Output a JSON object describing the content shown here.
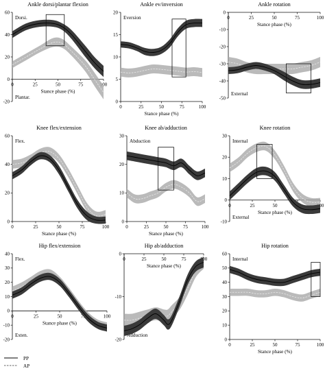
{
  "legend": {
    "items": [
      {
        "label": "PP",
        "style": "solid"
      },
      {
        "label": "AP",
        "style": "dashed"
      }
    ]
  },
  "colors": {
    "pp_band": "#3a3a3a",
    "ap_band": "#a9a9a9",
    "pp_mean": "#000000",
    "ap_mean": "#e8e8e8"
  },
  "chart_data": [
    {
      "id": "ankle-df",
      "type": "line",
      "title": "Ankle dorsi/plantar flexion",
      "xlabel": "Stance phase (%)",
      "ylabel": "",
      "top_label": "Dorsi.",
      "bottom_label": "Plantar.",
      "x_axis_at_y": 0,
      "xlim": [
        0,
        100
      ],
      "ylim": [
        -20,
        60
      ],
      "xticks": [
        0,
        25,
        50,
        75,
        100
      ],
      "yticks": [
        -20,
        0,
        20,
        40,
        60
      ],
      "significance": [
        {
          "x": [
            37,
            57
          ],
          "y": [
            30,
            58
          ],
          "star": "*"
        }
      ],
      "series": [
        {
          "name": "PP",
          "x": [
            0,
            15,
            30,
            45,
            55,
            65,
            80,
            90,
            100
          ],
          "mean": [
            40,
            47,
            50,
            50,
            47,
            40,
            25,
            15,
            7
          ],
          "sd": [
            3,
            3,
            3,
            3,
            3,
            4,
            5,
            5,
            5
          ]
        },
        {
          "name": "AP",
          "x": [
            0,
            15,
            30,
            45,
            55,
            65,
            80,
            90,
            100
          ],
          "mean": [
            13,
            20,
            27,
            33,
            32,
            25,
            12,
            0,
            -12
          ],
          "sd": [
            3,
            3,
            3,
            4,
            4,
            4,
            5,
            6,
            6
          ]
        }
      ]
    },
    {
      "id": "ankle-ev",
      "type": "line",
      "title": "Ankle ev/inversion",
      "xlabel": "Stance phase (%)",
      "ylabel": "",
      "top_label": "Eversion",
      "bottom_label": "",
      "x_axis_at_y": 0,
      "xlim": [
        0,
        100
      ],
      "ylim": [
        0,
        20
      ],
      "xticks": [
        0,
        25,
        50,
        75,
        100
      ],
      "yticks": [
        0,
        5,
        10,
        15,
        20
      ],
      "significance": [
        {
          "x": [
            63,
            80
          ],
          "y": [
            5.5,
            18.5
          ],
          "star": "*"
        }
      ],
      "series": [
        {
          "name": "PP",
          "x": [
            0,
            10,
            20,
            30,
            40,
            50,
            60,
            70,
            80,
            90,
            100
          ],
          "mean": [
            12.8,
            12.6,
            12.0,
            11.2,
            11.0,
            11.5,
            13.0,
            15.5,
            17.2,
            17.6,
            17.6
          ],
          "sd": [
            0.7,
            0.7,
            0.7,
            0.8,
            0.8,
            0.8,
            0.9,
            0.9,
            0.9,
            0.9,
            0.9
          ]
        },
        {
          "name": "AP",
          "x": [
            0,
            10,
            20,
            30,
            40,
            50,
            60,
            70,
            80,
            90,
            100
          ],
          "mean": [
            6.6,
            6.4,
            6.6,
            7.0,
            7.3,
            7.2,
            7.0,
            6.8,
            6.6,
            6.7,
            6.5
          ],
          "sd": [
            1.0,
            1.0,
            1.0,
            1.0,
            1.0,
            1.0,
            1.0,
            1.0,
            1.0,
            1.0,
            1.0
          ]
        }
      ]
    },
    {
      "id": "ankle-rot",
      "type": "line",
      "title": "Ankle rotation",
      "xlabel": "Stance phase (%)",
      "ylabel": "",
      "top_label": "",
      "bottom_label": "External",
      "x_axis_at_y": 0,
      "xlim": [
        0,
        100
      ],
      "ylim": [
        -50,
        0
      ],
      "xticks": [
        0,
        25,
        50,
        75,
        100
      ],
      "yticks": [
        -50,
        -40,
        -30,
        -20,
        -10,
        0
      ],
      "significance": [
        {
          "x": [
            63,
            90
          ],
          "y": [
            -47,
            -30
          ],
          "star": "*"
        }
      ],
      "series": [
        {
          "name": "PP",
          "x": [
            0,
            10,
            20,
            30,
            40,
            50,
            60,
            70,
            80,
            90,
            100
          ],
          "mean": [
            -34,
            -33.5,
            -32,
            -31,
            -32,
            -34,
            -37,
            -40,
            -42,
            -42,
            -41
          ],
          "sd": [
            2,
            2,
            2,
            2,
            2,
            2,
            2.5,
            2.5,
            2.5,
            2.5,
            2.5
          ]
        },
        {
          "name": "AP",
          "x": [
            0,
            10,
            20,
            30,
            40,
            50,
            60,
            70,
            80,
            90,
            100
          ],
          "mean": [
            -29,
            -30,
            -32,
            -33,
            -33,
            -33,
            -33,
            -33,
            -32,
            -31,
            -29
          ],
          "sd": [
            3,
            3,
            3,
            3,
            3,
            3,
            3,
            3,
            3,
            3,
            3
          ]
        }
      ]
    },
    {
      "id": "knee-flex",
      "type": "line",
      "title": "Knee flex/extension",
      "xlabel": "Stance phase (%)",
      "ylabel": "",
      "top_label": "Flex.",
      "bottom_label": "",
      "x_axis_at_y": 0,
      "xlim": [
        0,
        100
      ],
      "ylim": [
        0,
        60
      ],
      "xticks": [
        0,
        25,
        50,
        75,
        100
      ],
      "yticks": [
        0,
        20,
        40,
        60
      ],
      "significance": [],
      "series": [
        {
          "name": "PP",
          "x": [
            0,
            10,
            20,
            30,
            40,
            50,
            60,
            70,
            80,
            90,
            100
          ],
          "mean": [
            32,
            36,
            42,
            46,
            44,
            36,
            24,
            12,
            4,
            1,
            1
          ],
          "sd": [
            2.5,
            2.5,
            2.5,
            2.5,
            2.5,
            3,
            3,
            3,
            3,
            2.5,
            2.5
          ]
        },
        {
          "name": "AP",
          "x": [
            0,
            10,
            20,
            30,
            40,
            50,
            60,
            70,
            80,
            90,
            100
          ],
          "mean": [
            40,
            41,
            44,
            48,
            49,
            44,
            34,
            22,
            10,
            4,
            5
          ],
          "sd": [
            3,
            3,
            3,
            3,
            3,
            3,
            3,
            3,
            3,
            3,
            3
          ]
        }
      ]
    },
    {
      "id": "knee-ab",
      "type": "line",
      "title": "Knee ab/adduction",
      "xlabel": "Stance phase (%)",
      "ylabel": "",
      "top_label": "Abduction",
      "bottom_label": "",
      "x_axis_at_y": 0,
      "xlim": [
        0,
        100
      ],
      "ylim": [
        0,
        30
      ],
      "xticks": [
        0,
        25,
        50,
        75,
        100
      ],
      "yticks": [
        0,
        10,
        20,
        30
      ],
      "significance": [
        {
          "x": [
            40,
            60
          ],
          "y": [
            11,
            26
          ],
          "star": "*"
        }
      ],
      "series": [
        {
          "name": "PP",
          "x": [
            0,
            10,
            20,
            30,
            40,
            50,
            60,
            70,
            80,
            90,
            100
          ],
          "mean": [
            23,
            22.5,
            22,
            21.5,
            21,
            20.5,
            19.5,
            20.5,
            18,
            16,
            17
          ],
          "sd": [
            1.5,
            1.5,
            1.5,
            1.5,
            1.5,
            1.5,
            1.5,
            1.5,
            1.5,
            1.5,
            1.5
          ]
        },
        {
          "name": "AP",
          "x": [
            0,
            10,
            20,
            30,
            40,
            50,
            60,
            70,
            80,
            90,
            100
          ],
          "mean": [
            10,
            8,
            8,
            9,
            10,
            12,
            13,
            12,
            10,
            7,
            8
          ],
          "sd": [
            1.5,
            1.5,
            1.5,
            1.5,
            1.5,
            1.5,
            1.5,
            1.5,
            1.5,
            1.5,
            1.5
          ]
        }
      ]
    },
    {
      "id": "knee-rot",
      "type": "line",
      "title": "Knee rotation",
      "xlabel": "Stance phase (%)",
      "ylabel": "",
      "top_label": "Internal",
      "bottom_label": "External",
      "x_axis_at_y": 0,
      "xlim": [
        0,
        100
      ],
      "ylim": [
        -10,
        30
      ],
      "xticks": [
        0,
        25,
        50,
        75,
        100
      ],
      "yticks": [
        -10,
        0,
        10,
        20,
        30
      ],
      "significance": [
        {
          "x": [
            30,
            47
          ],
          "y": [
            10,
            26
          ],
          "star": "*"
        }
      ],
      "series": [
        {
          "name": "PP",
          "x": [
            0,
            10,
            20,
            30,
            40,
            50,
            60,
            70,
            80,
            90,
            100
          ],
          "mean": [
            2,
            6,
            10,
            13,
            13.5,
            11,
            5,
            -1,
            -4,
            -4.5,
            -4
          ],
          "sd": [
            2,
            2,
            2,
            2,
            2,
            2,
            2,
            2,
            2,
            2,
            2
          ]
        },
        {
          "name": "AP",
          "x": [
            0,
            10,
            20,
            30,
            40,
            50,
            60,
            70,
            80,
            90,
            100
          ],
          "mean": [
            15,
            18,
            22,
            24.5,
            25,
            21,
            14,
            6,
            1,
            -1,
            -1
          ],
          "sd": [
            2,
            2,
            2,
            2,
            2,
            2,
            2,
            2,
            2,
            2,
            2
          ]
        }
      ]
    },
    {
      "id": "hip-flex",
      "type": "line",
      "title": "Hip flex/extension",
      "xlabel": "Stance phase (%)",
      "ylabel": "",
      "top_label": "Flex.",
      "bottom_label": "Exten.",
      "x_axis_at_y": 0,
      "xlim": [
        0,
        100
      ],
      "ylim": [
        -20,
        40
      ],
      "xticks": [
        0,
        25,
        50,
        75,
        100
      ],
      "yticks": [
        -20,
        -10,
        0,
        10,
        20,
        30,
        40
      ],
      "significance": [],
      "series": [
        {
          "name": "PP",
          "x": [
            0,
            10,
            20,
            30,
            40,
            50,
            60,
            70,
            80,
            90,
            100
          ],
          "mean": [
            11,
            14,
            19,
            23,
            24,
            20,
            12,
            3,
            -5,
            -10,
            -12
          ],
          "sd": [
            2.5,
            2.5,
            2.5,
            2.5,
            2.5,
            2.5,
            2.5,
            2.5,
            2.5,
            2.5,
            2.5
          ]
        },
        {
          "name": "AP",
          "x": [
            0,
            10,
            20,
            30,
            40,
            50,
            60,
            70,
            80,
            90,
            100
          ],
          "mean": [
            14,
            17,
            21,
            25,
            26,
            21,
            13,
            4,
            -4,
            -9,
            -11
          ],
          "sd": [
            3,
            3,
            3,
            3,
            3,
            3,
            3,
            3,
            3,
            3,
            3
          ]
        }
      ]
    },
    {
      "id": "hip-ab",
      "type": "line",
      "title": "Hip ab/adduction",
      "xlabel": "Stance phase (%)",
      "ylabel": "",
      "top_label": "",
      "bottom_label": "Adduction",
      "x_axis_at_y": 0,
      "xlim": [
        0,
        100
      ],
      "ylim": [
        -20,
        0
      ],
      "xticks": [
        0,
        25,
        50,
        75,
        100
      ],
      "yticks": [
        -20,
        -10,
        0
      ],
      "significance": [],
      "series": [
        {
          "name": "PP",
          "x": [
            0,
            10,
            20,
            30,
            40,
            50,
            55,
            60,
            70,
            80,
            90,
            100
          ],
          "mean": [
            -18,
            -17.5,
            -16.5,
            -15,
            -14,
            -15.5,
            -16.5,
            -15.5,
            -11,
            -6,
            -3,
            -2
          ],
          "sd": [
            1.2,
            1.2,
            1.2,
            1.2,
            1.2,
            1.2,
            1.2,
            1.2,
            1.2,
            1.2,
            1.2,
            1.2
          ]
        },
        {
          "name": "AP",
          "x": [
            0,
            10,
            20,
            30,
            40,
            50,
            55,
            60,
            70,
            80,
            90,
            100
          ],
          "mean": [
            -15.5,
            -15.5,
            -15,
            -14.5,
            -14,
            -14.5,
            -14.5,
            -13.5,
            -11.5,
            -8,
            -4,
            -2
          ],
          "sd": [
            1.5,
            1.5,
            1.5,
            1.5,
            1.5,
            1.5,
            1.5,
            1.5,
            1.5,
            1.5,
            1.5,
            1.5
          ]
        }
      ]
    },
    {
      "id": "hip-rot",
      "type": "line",
      "title": "Hip rotation",
      "xlabel": "Stance phase (%)",
      "ylabel": "",
      "top_label": "Internal",
      "bottom_label": "",
      "x_axis_at_y": 0,
      "xlim": [
        0,
        100
      ],
      "ylim": [
        0,
        60
      ],
      "xticks": [
        0,
        25,
        50,
        75,
        100
      ],
      "yticks": [
        0,
        10,
        20,
        30,
        40,
        50,
        60
      ],
      "significance": [
        {
          "x": [
            90,
            100
          ],
          "y": [
            30,
            54
          ],
          "star": "*"
        }
      ],
      "series": [
        {
          "name": "PP",
          "x": [
            0,
            10,
            20,
            30,
            40,
            50,
            60,
            70,
            80,
            90,
            100
          ],
          "mean": [
            49,
            47,
            44,
            42,
            41,
            40,
            40,
            42,
            44,
            46,
            47
          ],
          "sd": [
            2.5,
            2.5,
            2.5,
            2.5,
            2.5,
            2.5,
            2.5,
            2.5,
            2.5,
            2.5,
            2.5
          ]
        },
        {
          "name": "AP",
          "x": [
            0,
            10,
            20,
            30,
            40,
            50,
            60,
            70,
            80,
            90,
            100
          ],
          "mean": [
            33,
            33,
            33,
            32,
            32,
            33,
            32,
            30,
            29,
            31,
            33
          ],
          "sd": [
            2.5,
            2.5,
            2.5,
            2.5,
            2.5,
            2.5,
            2.5,
            2.5,
            2.5,
            2.5,
            2.5
          ]
        }
      ]
    }
  ]
}
